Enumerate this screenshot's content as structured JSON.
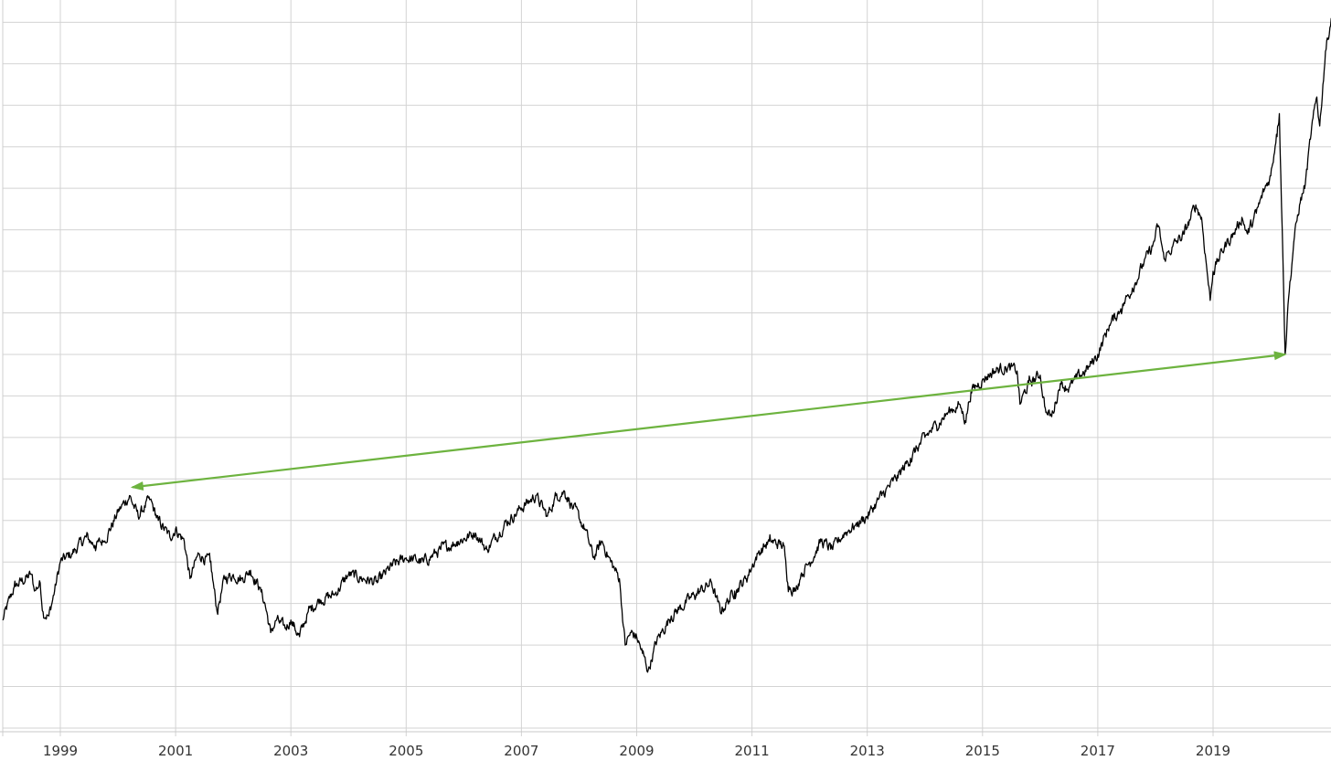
{
  "chart_data": {
    "type": "line",
    "title": "",
    "xlabel": "",
    "ylabel": "",
    "grid": true,
    "legend": "none",
    "x_tick_labels": [
      "1999",
      "2001",
      "2003",
      "2005",
      "2007",
      "2009",
      "2011",
      "2013",
      "2015",
      "2017",
      "2019"
    ],
    "x_range": [
      1998.0,
      2021.05
    ],
    "y_range": [
      0,
      17.5
    ],
    "y_ticks": [
      0,
      1,
      2,
      3,
      4,
      5,
      6,
      7,
      8,
      9,
      10,
      11,
      12,
      13,
      14,
      15,
      16,
      17
    ],
    "series": [
      {
        "color": "#000000",
        "points": [
          [
            1998.0,
            2.6
          ],
          [
            1998.2,
            3.4
          ],
          [
            1998.5,
            3.7
          ],
          [
            1998.55,
            3.3
          ],
          [
            1998.65,
            3.5
          ],
          [
            1998.7,
            2.8
          ],
          [
            1998.8,
            2.7
          ],
          [
            1998.9,
            3.3
          ],
          [
            1999.0,
            4.0
          ],
          [
            1999.2,
            4.2
          ],
          [
            1999.45,
            4.6
          ],
          [
            1999.6,
            4.4
          ],
          [
            1999.75,
            4.5
          ],
          [
            1999.9,
            4.9
          ],
          [
            2000.0,
            5.2
          ],
          [
            2000.2,
            5.6
          ],
          [
            2000.35,
            5.1
          ],
          [
            2000.55,
            5.5
          ],
          [
            2000.7,
            5.0
          ],
          [
            2000.9,
            4.6
          ],
          [
            2001.0,
            4.8
          ],
          [
            2001.15,
            4.5
          ],
          [
            2001.25,
            3.6
          ],
          [
            2001.4,
            4.2
          ],
          [
            2001.6,
            4.0
          ],
          [
            2001.72,
            2.8
          ],
          [
            2001.85,
            3.6
          ],
          [
            2002.0,
            3.7
          ],
          [
            2002.15,
            3.6
          ],
          [
            2002.3,
            3.8
          ],
          [
            2002.45,
            3.4
          ],
          [
            2002.55,
            3.0
          ],
          [
            2002.65,
            2.3
          ],
          [
            2002.75,
            2.6
          ],
          [
            2002.9,
            2.4
          ],
          [
            2003.0,
            2.6
          ],
          [
            2003.15,
            2.2
          ],
          [
            2003.3,
            2.8
          ],
          [
            2003.5,
            3.1
          ],
          [
            2003.75,
            3.2
          ],
          [
            2004.0,
            3.7
          ],
          [
            2004.25,
            3.6
          ],
          [
            2004.5,
            3.5
          ],
          [
            2004.75,
            3.9
          ],
          [
            2005.0,
            4.1
          ],
          [
            2005.3,
            4.0
          ],
          [
            2005.6,
            4.3
          ],
          [
            2005.9,
            4.5
          ],
          [
            2006.2,
            4.7
          ],
          [
            2006.4,
            4.3
          ],
          [
            2006.7,
            4.9
          ],
          [
            2007.0,
            5.3
          ],
          [
            2007.25,
            5.6
          ],
          [
            2007.45,
            5.1
          ],
          [
            2007.6,
            5.6
          ],
          [
            2007.75,
            5.7
          ],
          [
            2007.9,
            5.3
          ],
          [
            2008.1,
            4.8
          ],
          [
            2008.25,
            4.1
          ],
          [
            2008.4,
            4.5
          ],
          [
            2008.55,
            4.0
          ],
          [
            2008.7,
            3.6
          ],
          [
            2008.8,
            2.0
          ],
          [
            2008.9,
            2.3
          ],
          [
            2009.0,
            2.2
          ],
          [
            2009.1,
            1.8
          ],
          [
            2009.2,
            1.4
          ],
          [
            2009.35,
            2.1
          ],
          [
            2009.6,
            2.7
          ],
          [
            2010.0,
            3.2
          ],
          [
            2010.3,
            3.5
          ],
          [
            2010.45,
            2.8
          ],
          [
            2010.7,
            3.3
          ],
          [
            2010.9,
            3.6
          ],
          [
            2011.1,
            4.2
          ],
          [
            2011.3,
            4.5
          ],
          [
            2011.55,
            4.4
          ],
          [
            2011.62,
            3.5
          ],
          [
            2011.75,
            3.3
          ],
          [
            2011.85,
            3.7
          ],
          [
            2012.0,
            4.0
          ],
          [
            2012.2,
            4.5
          ],
          [
            2012.4,
            4.3
          ],
          [
            2012.6,
            4.7
          ],
          [
            2012.8,
            4.9
          ],
          [
            2013.0,
            5.1
          ],
          [
            2013.25,
            5.6
          ],
          [
            2013.5,
            6.0
          ],
          [
            2013.75,
            6.5
          ],
          [
            2014.0,
            7.0
          ],
          [
            2014.2,
            7.3
          ],
          [
            2014.4,
            7.6
          ],
          [
            2014.6,
            7.8
          ],
          [
            2014.7,
            7.4
          ],
          [
            2014.8,
            8.1
          ],
          [
            2015.0,
            8.4
          ],
          [
            2015.2,
            8.6
          ],
          [
            2015.4,
            8.7
          ],
          [
            2015.6,
            8.6
          ],
          [
            2015.65,
            7.8
          ],
          [
            2015.8,
            8.3
          ],
          [
            2016.0,
            8.5
          ],
          [
            2016.1,
            7.6
          ],
          [
            2016.2,
            7.5
          ],
          [
            2016.35,
            8.3
          ],
          [
            2016.5,
            8.2
          ],
          [
            2016.7,
            8.5
          ],
          [
            2016.85,
            8.7
          ],
          [
            2017.0,
            9.0
          ],
          [
            2017.2,
            9.7
          ],
          [
            2017.4,
            10.1
          ],
          [
            2017.6,
            10.6
          ],
          [
            2017.8,
            11.2
          ],
          [
            2017.95,
            11.6
          ],
          [
            2018.05,
            12.1
          ],
          [
            2018.15,
            11.3
          ],
          [
            2018.3,
            11.6
          ],
          [
            2018.5,
            11.9
          ],
          [
            2018.7,
            12.6
          ],
          [
            2018.8,
            12.3
          ],
          [
            2018.95,
            10.3
          ],
          [
            2019.0,
            11.0
          ],
          [
            2019.2,
            11.6
          ],
          [
            2019.4,
            12.0
          ],
          [
            2019.5,
            12.3
          ],
          [
            2019.6,
            11.9
          ],
          [
            2019.75,
            12.4
          ],
          [
            2019.9,
            13.0
          ],
          [
            2020.0,
            13.3
          ],
          [
            2020.1,
            14.3
          ],
          [
            2020.15,
            14.8
          ],
          [
            2020.2,
            12.0
          ],
          [
            2020.25,
            9.0
          ],
          [
            2020.3,
            10.2
          ],
          [
            2020.4,
            11.7
          ],
          [
            2020.5,
            12.6
          ],
          [
            2020.6,
            13.1
          ],
          [
            2020.7,
            14.3
          ],
          [
            2020.8,
            15.2
          ],
          [
            2020.85,
            14.5
          ],
          [
            2020.95,
            16.3
          ],
          [
            2021.05,
            17.1
          ]
        ]
      }
    ],
    "annotations": [
      {
        "type": "double-arrow",
        "color": "#6db33f",
        "from": [
          2000.25,
          5.8
        ],
        "to": [
          2020.25,
          9.0
        ]
      }
    ]
  }
}
